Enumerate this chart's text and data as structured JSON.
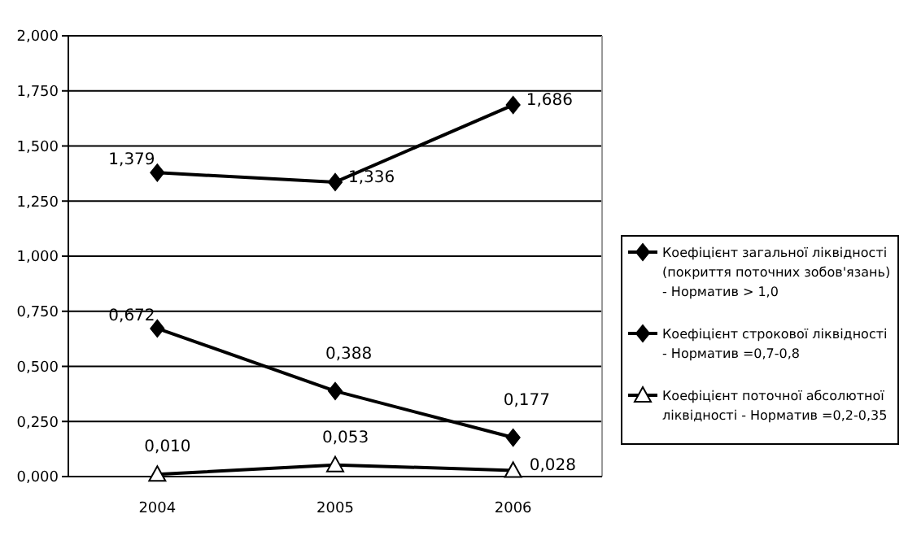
{
  "chart_data": {
    "type": "line",
    "categories": [
      "2004",
      "2005",
      "2006"
    ],
    "series": [
      {
        "name": "Коефіцієнт загальної ліквідності (покриття поточних зобов'язань) - Норматив > 1,0",
        "color": "#000000",
        "marker": "diamond",
        "values": [
          1.379,
          1.336,
          1.686
        ],
        "value_labels": [
          "1,379",
          "1,336",
          "1,686"
        ]
      },
      {
        "name": "Коефіцієнт строкової ліквідності - Норматив =0,7-0,8",
        "color": "#000000",
        "marker": "diamond",
        "values": [
          0.672,
          0.388,
          0.177
        ],
        "value_labels": [
          "0,672",
          "0,388",
          "0,177"
        ]
      },
      {
        "name": "Коефіцієнт поточної абсолютної ліквідності - Норматив =0,2-0,35",
        "color": "#000000",
        "marker": "triangle",
        "values": [
          0.01,
          0.053,
          0.028
        ],
        "value_labels": [
          "0,010",
          "0,053",
          "0,028"
        ]
      }
    ],
    "ylim": [
      0,
      2
    ],
    "yticks": [
      {
        "value": 0,
        "label": "0,000"
      },
      {
        "value": 0.25,
        "label": "0,250"
      },
      {
        "value": 0.5,
        "label": "0,500"
      },
      {
        "value": 0.75,
        "label": "0,750"
      },
      {
        "value": 1,
        "label": "1,000"
      },
      {
        "value": 1.25,
        "label": "1,250"
      },
      {
        "value": 1.5,
        "label": "1,500"
      },
      {
        "value": 1.75,
        "label": "1,750"
      },
      {
        "value": 2,
        "label": "2,000"
      }
    ],
    "grid": "y",
    "legend": "right",
    "line_style": "solid"
  }
}
